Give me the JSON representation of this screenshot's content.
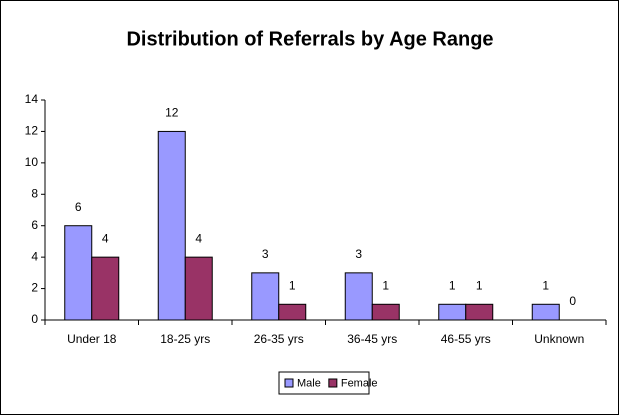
{
  "chart_data": {
    "type": "bar",
    "title": "Distribution of Referrals by Age Range",
    "categories": [
      "Under 18",
      "18-25 yrs",
      "26-35 yrs",
      "36-45 yrs",
      "46-55 yrs",
      "Unknown"
    ],
    "series": [
      {
        "name": "Male",
        "color": "#9999ff",
        "values": [
          6,
          12,
          3,
          3,
          1,
          1
        ]
      },
      {
        "name": "Female",
        "color": "#993366",
        "values": [
          4,
          4,
          1,
          1,
          1,
          0
        ]
      }
    ],
    "ylim": [
      0,
      14
    ],
    "yticks": [
      0,
      2,
      4,
      6,
      8,
      10,
      12,
      14
    ],
    "grid": false,
    "legend": "bottom"
  }
}
